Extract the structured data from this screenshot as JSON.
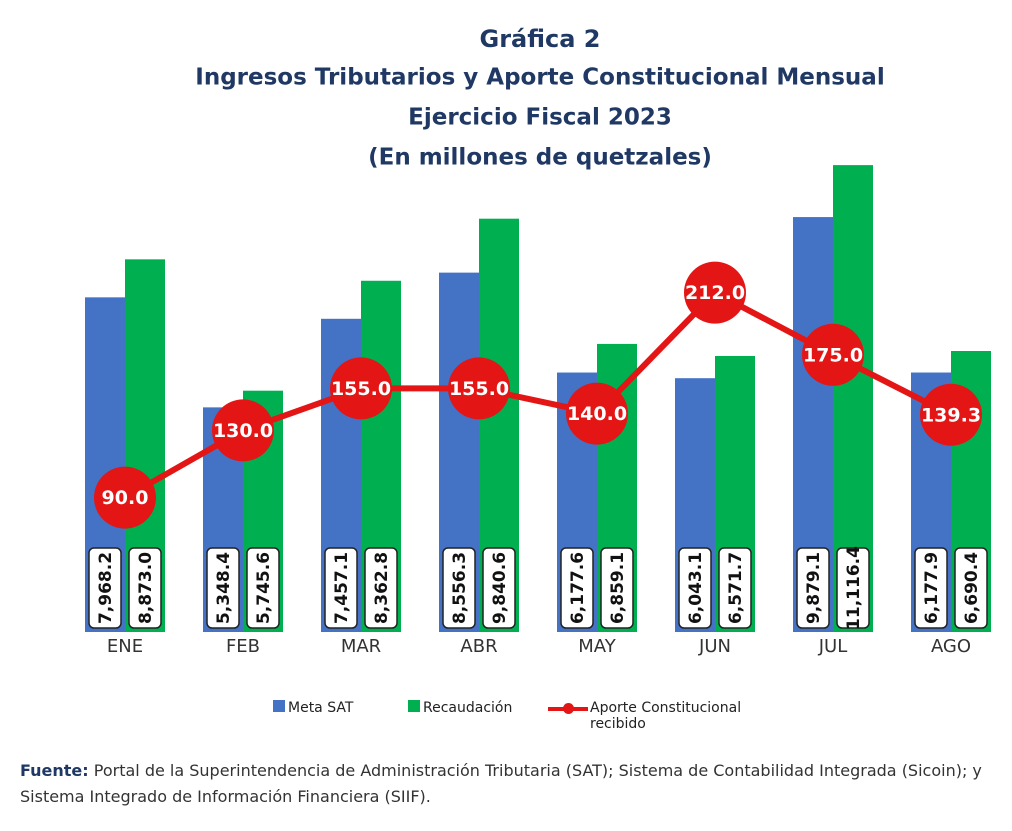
{
  "chart_data": {
    "type": "bar_line",
    "title": "Gráfica 2",
    "subtitle": [
      "Ingresos Tributarios y Aporte Constitucional Mensual",
      "Ejercicio Fiscal 2023",
      "(En millones de quetzales)"
    ],
    "categories": [
      "ENE",
      "FEB",
      "MAR",
      "ABR",
      "MAY",
      "JUN",
      "JUL",
      "AGO"
    ],
    "ylim": [
      0,
      12000
    ],
    "y2lim": [
      10,
      310
    ],
    "series": [
      {
        "name": "Meta SAT",
        "color": "#4472c4",
        "type": "bar",
        "values": [
          7968.2,
          5348.4,
          7457.1,
          8556.3,
          6177.6,
          6043.1,
          9879.1,
          6177.9
        ],
        "value_labels": [
          "7,968.2",
          "5,348.4",
          "7,457.1",
          "8,556.3",
          "6,177.6",
          "6,043.1",
          "9,879.1",
          "6,177.9"
        ]
      },
      {
        "name": "Recaudación",
        "color": "#00b050",
        "type": "bar",
        "values": [
          8873.0,
          5745.6,
          8362.8,
          9840.6,
          6859.1,
          6571.7,
          11116.4,
          6690.4
        ],
        "value_labels": [
          "8,873.0",
          "5,745.6",
          "8,362.8",
          "9,840.6",
          "6,859.1",
          "6,571.7",
          "11,116.4",
          "6,690.4"
        ]
      },
      {
        "name": "Aporte Constitucional recibido",
        "color": "#e41515",
        "type": "line",
        "axis": "y2",
        "values": [
          90.0,
          130.0,
          155.0,
          155.0,
          140.0,
          212.0,
          175.0,
          139.3
        ],
        "value_labels": [
          "90.0",
          "130.0",
          "155.0",
          "155.0",
          "140.0",
          "212.0",
          "175.0",
          "139.3"
        ]
      }
    ],
    "source": {
      "label": "Fuente:",
      "text": "Portal de la Superintendencia de Administración Tributaria (SAT); Sistema de Contabilidad Integrada (Sicoin); y Sistema Integrado de Información Financiera (SIIF)."
    }
  }
}
